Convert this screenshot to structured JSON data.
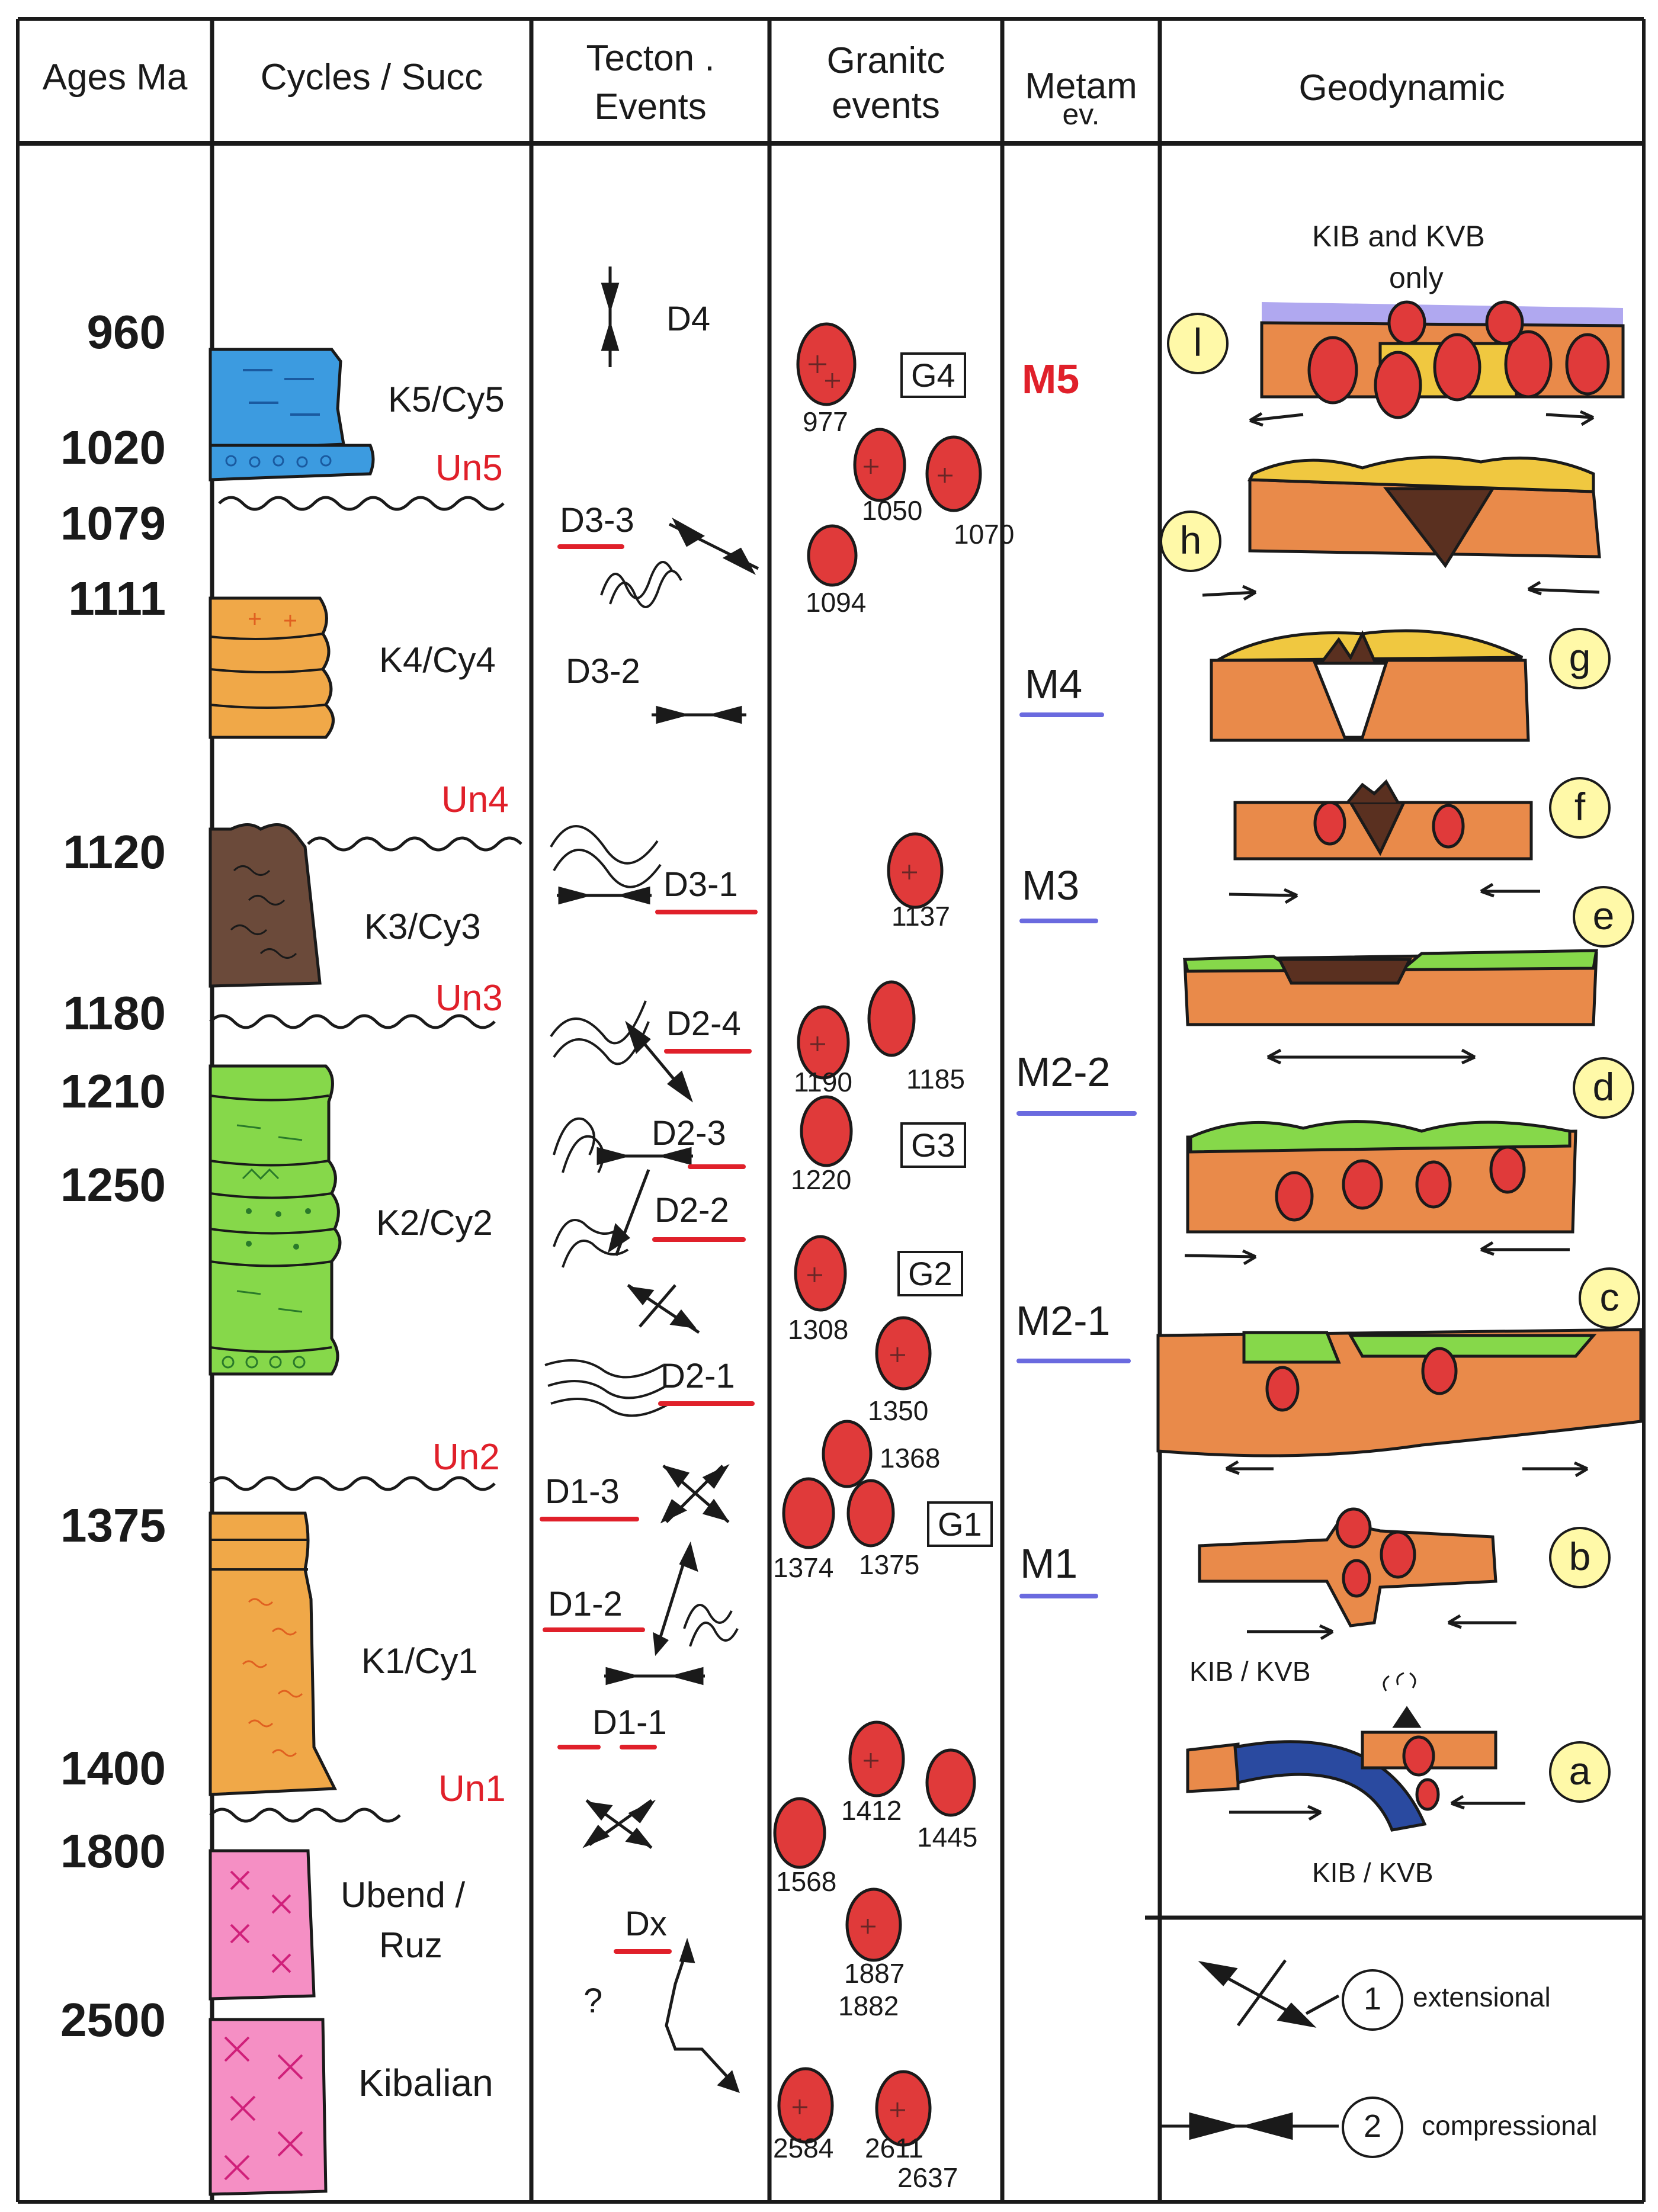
{
  "headers": {
    "ages": "Ages Ma",
    "cycles": "Cycles / Succ",
    "tecton_1": "Tecton .",
    "tecton_2": "Events",
    "granitic_1": "Granitc",
    "granitic_2": "events",
    "metam_1": "Metam",
    "metam_2": "ev.",
    "geodynamic": "Geodynamic"
  },
  "ages": [
    "960",
    "1020",
    "1079",
    "1111",
    "1120",
    "1180",
    "1210",
    "1250",
    "1375",
    "1400",
    "1800",
    "2500"
  ],
  "cycles": {
    "k5": "K5/Cy5",
    "k4": "K4/Cy4",
    "k3": "K3/Cy3",
    "k2": "K2/Cy2",
    "k1": "K1/Cy1",
    "ubend_1": "Ubend /",
    "ubend_2": "Ruz",
    "kibalian": "Kibalian"
  },
  "unconformities": [
    "Un5",
    "Un4",
    "Un3",
    "Un2",
    "Un1"
  ],
  "tectonic_events": [
    "D4",
    "D3-3",
    "D3-2",
    "D3-1",
    "D2-4",
    "D2-3",
    "D2-2",
    "D2-1",
    "D1-3",
    "D1-2",
    "D1-1",
    "Dx",
    "?"
  ],
  "granitic_numbers": [
    "977",
    "1050",
    "1070",
    "1094",
    "1137",
    "1190",
    "1185",
    "1220",
    "1308",
    "1350",
    "1368",
    "1374",
    "1375",
    "1412",
    "1445",
    "1568",
    "1887",
    "1882",
    "2584",
    "2611",
    "2637"
  ],
  "granitic_groups": [
    "G4",
    "G3",
    "G2",
    "G1"
  ],
  "metamorphic_events": [
    "M5",
    "M4",
    "M3",
    "M2-2",
    "M2-1",
    "M1"
  ],
  "geodynamic": {
    "labels": [
      "l",
      "h",
      "g",
      "f",
      "e",
      "d",
      "c",
      "b",
      "a"
    ],
    "note_top_1": "KIB and KVB",
    "note_top_2": "only",
    "kib_kvb_b": "KIB / KVB",
    "kib_kvb_a": "KIB / KVB"
  },
  "legend": {
    "extensional_num": "1",
    "extensional_label": "extensional",
    "compressional_num": "2",
    "compressional_label": "compressional"
  },
  "colors": {
    "unconformity_red": "#e0202a",
    "metam_blue": "#6a6adf",
    "granite_red": "#e03a3a",
    "cy5_blue": "#3c9be0",
    "cy4_orange": "#f0a848",
    "cy3_brown": "#6b4a3a",
    "cy2_green": "#86d84a",
    "cy1_orange": "#f0a848",
    "basement_pink": "#f58fc4",
    "crust_orange": "#e98a4a",
    "yellow_circle": "#fff9a8"
  }
}
